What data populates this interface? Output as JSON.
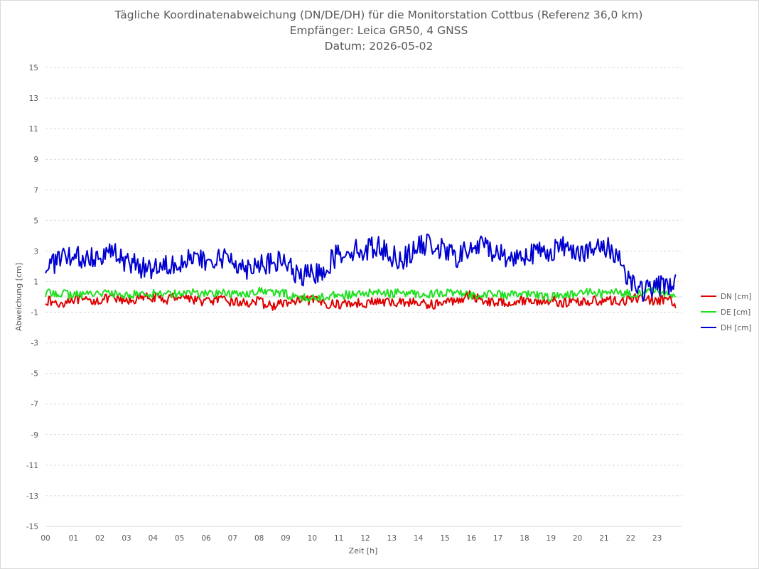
{
  "chart_data": {
    "type": "line",
    "title": "Tägliche Koordinatenabweichung (DN/DE/DH) für die Monitorstation Cottbus (Referenz 36,0 km)",
    "subtitle": "Empfänger: Leica GR50, 4 GNSS",
    "date_line": "Datum: 2026-05-02",
    "xlabel": "Zeit [h]",
    "ylabel": "Abweichung [cm]",
    "xlim": [
      0,
      24
    ],
    "ylim": [
      -15,
      15
    ],
    "x_tick_labels": [
      "00",
      "01",
      "02",
      "03",
      "04",
      "05",
      "06",
      "07",
      "08",
      "09",
      "10",
      "11",
      "12",
      "13",
      "14",
      "15",
      "16",
      "17",
      "18",
      "19",
      "20",
      "21",
      "22",
      "23"
    ],
    "y_ticks": [
      15,
      13,
      11,
      9,
      7,
      5,
      3,
      1,
      -1,
      -3,
      -5,
      -7,
      -9,
      -11,
      -13,
      -15
    ],
    "grid": "horizontal dashed",
    "legend_position": "right",
    "x": [
      0,
      0.5,
      1,
      1.5,
      2,
      2.5,
      3,
      3.5,
      4,
      4.5,
      5,
      5.5,
      6,
      6.5,
      7,
      7.5,
      8,
      8.5,
      9,
      9.5,
      10,
      10.5,
      11,
      11.5,
      12,
      12.5,
      13,
      13.5,
      14,
      14.5,
      15,
      15.5,
      16,
      16.5,
      17,
      17.5,
      18,
      18.5,
      19,
      19.5,
      20,
      20.5,
      21,
      21.5,
      22,
      22.5,
      23,
      23.5,
      23.75
    ],
    "series": [
      {
        "name": "DN [cm]",
        "color": "#e00000",
        "values": [
          -0.2,
          -0.5,
          -0.1,
          -0.3,
          -0.2,
          -0.1,
          -0.3,
          -0.1,
          0.0,
          -0.2,
          0.1,
          -0.1,
          -0.3,
          -0.2,
          -0.3,
          -0.4,
          -0.3,
          -0.6,
          -0.4,
          -0.3,
          -0.2,
          -0.4,
          -0.5,
          -0.4,
          -0.4,
          -0.3,
          -0.4,
          -0.3,
          -0.4,
          -0.5,
          -0.4,
          -0.2,
          0.1,
          -0.2,
          -0.4,
          -0.3,
          -0.2,
          -0.3,
          -0.2,
          -0.4,
          -0.3,
          -0.3,
          -0.2,
          -0.3,
          -0.2,
          0.0,
          -0.3,
          -0.1,
          -0.8
        ]
      },
      {
        "name": "DE [cm]",
        "color": "#20e020",
        "values": [
          0.2,
          0.3,
          0.1,
          0.2,
          0.3,
          0.2,
          0.1,
          0.2,
          0.2,
          0.3,
          0.2,
          0.3,
          0.2,
          0.3,
          0.2,
          0.2,
          0.4,
          0.3,
          0.2,
          0.0,
          -0.1,
          0.0,
          0.2,
          0.1,
          0.2,
          0.3,
          0.2,
          0.3,
          0.2,
          0.2,
          0.3,
          0.2,
          0.1,
          0.2,
          0.2,
          0.1,
          0.2,
          0.1,
          0.0,
          0.1,
          0.2,
          0.3,
          0.2,
          0.3,
          0.2,
          0.3,
          0.4,
          0.2,
          0.0
        ]
      },
      {
        "name": "DH [cm]",
        "color": "#0000d0",
        "values": [
          2.0,
          2.4,
          2.6,
          2.5,
          2.8,
          3.0,
          2.3,
          2.0,
          1.9,
          2.2,
          2.3,
          2.6,
          2.2,
          2.4,
          2.6,
          1.8,
          2.3,
          2.1,
          2.4,
          1.3,
          1.4,
          1.8,
          2.8,
          3.1,
          3.0,
          3.4,
          2.7,
          2.5,
          3.2,
          3.5,
          3.0,
          2.6,
          3.1,
          3.4,
          2.9,
          2.5,
          2.8,
          2.9,
          3.0,
          3.3,
          3.1,
          2.9,
          3.3,
          2.9,
          1.2,
          0.4,
          0.6,
          0.9,
          0.9
        ]
      }
    ]
  }
}
